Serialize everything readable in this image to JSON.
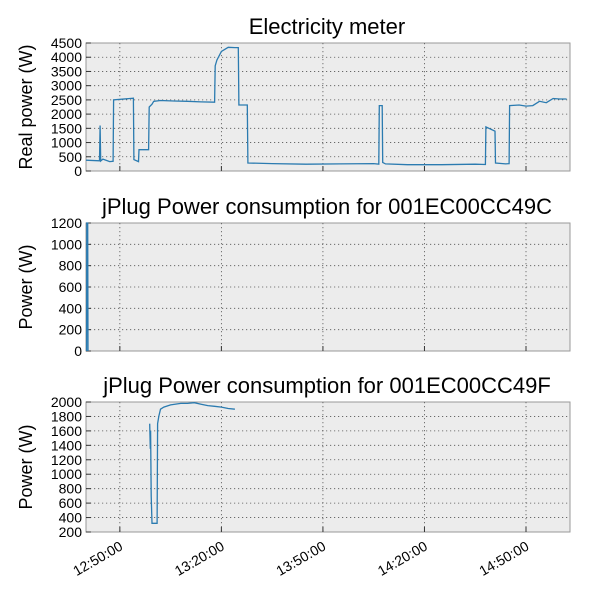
{
  "chart_data": [
    {
      "type": "line",
      "title": "Electricity meter",
      "xlabel": "",
      "ylabel": "Real power (W)",
      "ylim": [
        0,
        4500
      ],
      "yticks": [
        0,
        500,
        1000,
        1500,
        2000,
        2500,
        3000,
        3500,
        4000,
        4500
      ],
      "grid": true,
      "series": [
        {
          "color": "#2b7bb0",
          "x": [
            "12:40:00",
            "12:44:00",
            "12:44:10",
            "12:44:20",
            "12:45:00",
            "12:47:00",
            "12:48:00",
            "12:48:10",
            "12:54:00",
            "12:54:10",
            "12:55:30",
            "12:55:40",
            "12:58:30",
            "12:58:40",
            "12:59:30",
            "13:00:00",
            "13:02:00",
            "13:06:00",
            "13:10:00",
            "13:14:00",
            "13:18:00",
            "13:18:10",
            "13:18:40",
            "13:20:00",
            "13:22:00",
            "13:24:00",
            "13:25:00",
            "13:25:10",
            "13:27:40",
            "13:27:50",
            "13:35:00",
            "13:45:00",
            "13:55:00",
            "14:05:00",
            "14:06:30",
            "14:06:40",
            "14:07:30",
            "14:07:40",
            "14:08:30",
            "14:15:00",
            "14:25:00",
            "14:35:00",
            "14:38:00",
            "14:38:10",
            "14:40:50",
            "14:41:00",
            "14:44:00",
            "14:45:00",
            "14:45:10",
            "14:48:00",
            "14:50:00",
            "14:52:00",
            "14:54:00",
            "14:56:00",
            "14:58:00",
            "15:00:00",
            "15:02:00"
          ],
          "y": [
            380,
            360,
            1600,
            350,
            420,
            330,
            340,
            2500,
            2560,
            400,
            330,
            750,
            750,
            2250,
            2350,
            2450,
            2480,
            2460,
            2450,
            2430,
            2420,
            3700,
            3900,
            4200,
            4350,
            4340,
            4340,
            2320,
            2320,
            280,
            260,
            240,
            250,
            260,
            240,
            2300,
            2300,
            300,
            250,
            220,
            220,
            240,
            230,
            1550,
            1400,
            280,
            250,
            260,
            2300,
            2320,
            2280,
            2300,
            2450,
            2400,
            2550,
            2530,
            2530
          ]
        }
      ]
    },
    {
      "type": "line",
      "title": "jPlug Power consumption for 001EC00CC49C",
      "xlabel": "",
      "ylabel": "Power (W)",
      "ylim": [
        0,
        1200
      ],
      "yticks": [
        0,
        200,
        400,
        600,
        800,
        1000,
        1200
      ],
      "grid": true,
      "series": [
        {
          "color": "#2b7bb0",
          "x": [
            "12:40:10",
            "12:40:15",
            "12:40:30",
            "12:40:35"
          ],
          "y": [
            0,
            1200,
            1200,
            0
          ]
        }
      ]
    },
    {
      "type": "line",
      "title": "jPlug Power consumption for 001EC00CC49F",
      "xlabel": "",
      "ylabel": "Power (W)",
      "ylim": [
        200,
        2000
      ],
      "yticks": [
        200,
        400,
        600,
        800,
        1000,
        1200,
        1400,
        1600,
        1800,
        2000
      ],
      "grid": true,
      "xticks": [
        "12:50:00",
        "13:20:00",
        "13:50:00",
        "14:20:00",
        "14:50:00"
      ],
      "series": [
        {
          "color": "#2b7bb0",
          "x": [
            "12:58:50",
            "12:59:00",
            "12:59:05",
            "12:59:15",
            "12:59:30",
            "13:01:00",
            "13:01:10",
            "13:01:30",
            "13:02:00",
            "13:03:00",
            "13:05:00",
            "13:08:00",
            "13:10:00",
            "13:12:00",
            "13:14:00",
            "13:16:00",
            "13:18:00",
            "13:20:00",
            "13:22:00",
            "13:24:00"
          ],
          "y": [
            1700,
            1350,
            1600,
            700,
            320,
            320,
            1700,
            1800,
            1900,
            1930,
            1960,
            1980,
            1980,
            1990,
            1970,
            1950,
            1940,
            1930,
            1910,
            1900
          ]
        }
      ]
    }
  ],
  "x_axis": {
    "tick_labels": [
      "12:50:00",
      "13:20:00",
      "13:50:00",
      "14:20:00",
      "14:50:00"
    ],
    "range": [
      "12:40:00",
      "15:03:00"
    ]
  }
}
